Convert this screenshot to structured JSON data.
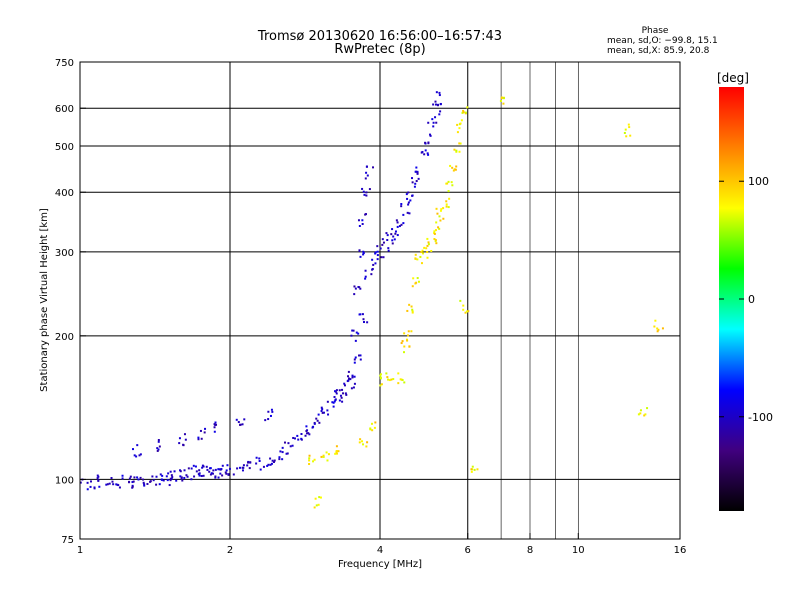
{
  "header": {
    "title_line1": "Tromsø 20130620 16:56:00–16:57:43",
    "title_line2": "RwPretec (8p)",
    "phase_title": "Phase",
    "phase_o": "mean, sd,O: −99.8, 15.1",
    "phase_x": "mean, sd,X:  85.9, 20.8"
  },
  "chart_data": {
    "type": "scatter",
    "xlabel": "Frequency [MHz]",
    "ylabel": "Stationary phase Virtual Height [km]",
    "xscale": "log",
    "yscale": "log",
    "xlim": [
      1,
      16
    ],
    "ylim": [
      75,
      750
    ],
    "x_ticks": [
      1,
      2,
      4,
      6,
      8,
      10,
      16
    ],
    "y_ticks": [
      75,
      100,
      200,
      300,
      400,
      500,
      600,
      750
    ],
    "x_grid_major": [
      2,
      4,
      6
    ],
    "x_grid_minor": [
      7,
      8,
      9,
      10
    ],
    "y_grid_major": [
      100,
      200,
      300,
      400,
      500,
      600
    ],
    "grid": true,
    "colorbar": {
      "label": "[deg]",
      "range": [
        -180,
        180
      ],
      "ticks": [
        100,
        0,
        -100
      ],
      "colors": [
        "#000000",
        "#40007f",
        "#0000ff",
        "#00ffff",
        "#00ff00",
        "#ffff00",
        "#ff8000",
        "#ff0000"
      ]
    },
    "series": [
      {
        "mode": "O",
        "mean_phase": -99.8,
        "sd_phase": 15.1,
        "points": [
          [
            1.0,
            99
          ],
          [
            1.05,
            98
          ],
          [
            1.1,
            99
          ],
          [
            1.15,
            98
          ],
          [
            1.2,
            99
          ],
          [
            1.25,
            99
          ],
          [
            1.3,
            99
          ],
          [
            1.35,
            100
          ],
          [
            1.4,
            100
          ],
          [
            1.45,
            100
          ],
          [
            1.5,
            100
          ],
          [
            1.55,
            101
          ],
          [
            1.6,
            102
          ],
          [
            1.65,
            103
          ],
          [
            1.7,
            104
          ],
          [
            1.75,
            104
          ],
          [
            1.8,
            104
          ],
          [
            1.85,
            104
          ],
          [
            1.9,
            104
          ],
          [
            1.95,
            104
          ],
          [
            2.0,
            105
          ],
          [
            2.1,
            106
          ],
          [
            2.2,
            107
          ],
          [
            2.3,
            108
          ],
          [
            2.4,
            110
          ],
          [
            2.5,
            112
          ],
          [
            2.6,
            116
          ],
          [
            2.7,
            120
          ],
          [
            2.8,
            123
          ],
          [
            2.9,
            127
          ],
          [
            3.0,
            134
          ],
          [
            3.1,
            138
          ],
          [
            3.2,
            143
          ],
          [
            3.3,
            150
          ],
          [
            3.4,
            155
          ],
          [
            3.5,
            160
          ],
          [
            3.55,
            200
          ],
          [
            3.6,
            250
          ],
          [
            3.65,
            300
          ],
          [
            3.7,
            350
          ],
          [
            3.75,
            400
          ],
          [
            3.8,
            440
          ],
          [
            3.6,
            180
          ],
          [
            3.7,
            220
          ],
          [
            3.8,
            270
          ],
          [
            3.9,
            290
          ],
          [
            4.0,
            300
          ],
          [
            4.1,
            310
          ],
          [
            4.2,
            320
          ],
          [
            4.3,
            330
          ],
          [
            4.4,
            350
          ],
          [
            4.5,
            370
          ],
          [
            4.6,
            390
          ],
          [
            4.7,
            420
          ],
          [
            4.8,
            450
          ],
          [
            4.9,
            480
          ],
          [
            5.0,
            520
          ],
          [
            5.1,
            560
          ],
          [
            5.2,
            600
          ],
          [
            5.25,
            630
          ],
          [
            1.3,
            115
          ],
          [
            1.45,
            118
          ],
          [
            1.6,
            121
          ],
          [
            1.75,
            124
          ],
          [
            1.9,
            128
          ],
          [
            2.1,
            132
          ],
          [
            2.4,
            137
          ],
          [
            3.3,
            150
          ],
          [
            3.5,
            165
          ]
        ]
      },
      {
        "mode": "X",
        "mean_phase": 85.9,
        "sd_phase": 20.8,
        "points": [
          [
            2.9,
            110
          ],
          [
            3.1,
            112
          ],
          [
            3.3,
            114
          ],
          [
            3.7,
            120
          ],
          [
            3.85,
            130
          ],
          [
            4.0,
            162
          ],
          [
            4.2,
            162
          ],
          [
            4.4,
            164
          ],
          [
            4.5,
            190
          ],
          [
            4.55,
            200
          ],
          [
            4.6,
            230
          ],
          [
            4.7,
            260
          ],
          [
            4.8,
            290
          ],
          [
            4.9,
            300
          ],
          [
            5.0,
            310
          ],
          [
            5.1,
            320
          ],
          [
            5.2,
            340
          ],
          [
            5.3,
            360
          ],
          [
            5.4,
            380
          ],
          [
            5.5,
            410
          ],
          [
            5.6,
            450
          ],
          [
            5.7,
            500
          ],
          [
            5.8,
            550
          ],
          [
            5.9,
            600
          ],
          [
            6.2,
            105
          ],
          [
            7.0,
            620
          ],
          [
            12.5,
            540
          ],
          [
            13.5,
            140
          ],
          [
            14.5,
            210
          ],
          [
            5.9,
            230
          ],
          [
            3.0,
            90
          ]
        ]
      }
    ]
  }
}
